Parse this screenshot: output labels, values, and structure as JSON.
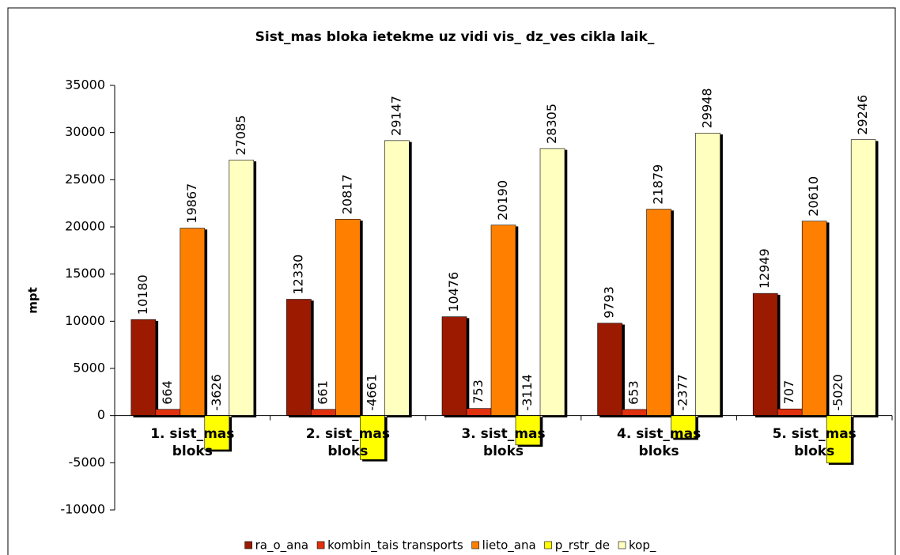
{
  "chart_data": {
    "type": "bar",
    "title": "Sist_mas bloka ietekme uz vidi vis_ dz_ves cikla laik_",
    "y_label": "mpt",
    "categories": [
      "1. sist_mas bloks",
      "2. sist_mas bloks",
      "3. sist_mas bloks",
      "4. sist_mas bloks",
      "5. sist_mas bloks"
    ],
    "series": [
      {
        "name": "ra_o_ana",
        "color": "#9b1a00",
        "values": [
          10180,
          12330,
          10476,
          9793,
          12949
        ]
      },
      {
        "name": "kombin_tais transports",
        "color": "#e0300e",
        "values": [
          664,
          661,
          753,
          653,
          707
        ]
      },
      {
        "name": "lieto_ana",
        "color": "#ff8000",
        "values": [
          19867,
          20817,
          20190,
          21879,
          20610
        ]
      },
      {
        "name": "p_rstr_de",
        "color": "#ffff00",
        "values": [
          -3626,
          -4661,
          -3114,
          -2377,
          -5020
        ]
      },
      {
        "name": "kop_",
        "color": "#ffffc0",
        "values": [
          27085,
          29147,
          28305,
          29948,
          29246
        ]
      }
    ],
    "ylim": [
      -10000,
      35000
    ],
    "yticks": [
      -10000,
      -5000,
      0,
      5000,
      10000,
      15000,
      20000,
      25000,
      30000,
      35000
    ],
    "grid": false,
    "legend": "bottom"
  }
}
